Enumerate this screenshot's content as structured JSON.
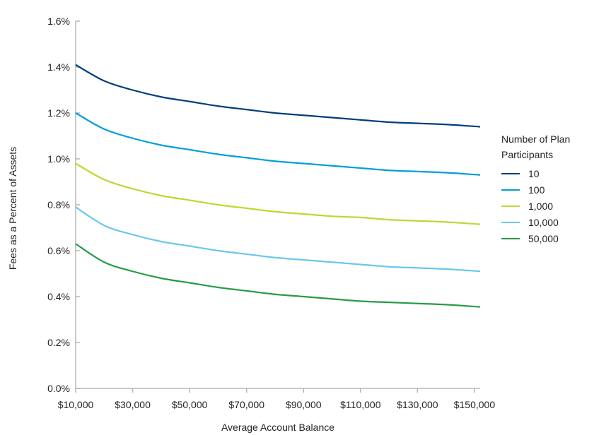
{
  "chart_data": {
    "type": "line",
    "xlabel": "Average Account Balance",
    "ylabel": "Fees as a Percent of Assets",
    "x_tick_labels": [
      "$10,000",
      "$30,000",
      "$50,000",
      "$70,000",
      "$90,000",
      "$110,000",
      "$130,000",
      "$150,000"
    ],
    "y_tick_labels": [
      "0.0%",
      "0.2%",
      "0.4%",
      "0.6%",
      "0.8%",
      "1.0%",
      "1.2%",
      "1.4%",
      "1.6%"
    ],
    "xlim": [
      10000,
      152000
    ],
    "ylim": [
      0,
      1.6
    ],
    "x_ticks": [
      10000,
      30000,
      50000,
      70000,
      90000,
      110000,
      130000,
      150000
    ],
    "y_ticks": [
      0,
      0.2,
      0.4,
      0.6,
      0.8,
      1.0,
      1.2,
      1.4,
      1.6
    ],
    "legend_title": "Number of Plan Participants",
    "legend_position": "right",
    "grid": false,
    "series": [
      {
        "name": "10",
        "color": "#003e7e",
        "x": [
          10000,
          20000,
          30000,
          40000,
          50000,
          60000,
          70000,
          80000,
          90000,
          100000,
          110000,
          120000,
          130000,
          140000,
          152000
        ],
        "y": [
          1.41,
          1.34,
          1.3,
          1.27,
          1.25,
          1.23,
          1.215,
          1.2,
          1.19,
          1.18,
          1.17,
          1.16,
          1.155,
          1.15,
          1.14
        ]
      },
      {
        "name": "100",
        "color": "#009fda",
        "x": [
          10000,
          20000,
          30000,
          40000,
          50000,
          60000,
          70000,
          80000,
          90000,
          100000,
          110000,
          120000,
          130000,
          140000,
          152000
        ],
        "y": [
          1.2,
          1.13,
          1.09,
          1.06,
          1.04,
          1.02,
          1.005,
          0.99,
          0.98,
          0.97,
          0.96,
          0.95,
          0.945,
          0.94,
          0.93
        ]
      },
      {
        "name": "1,000",
        "color": "#bfd730",
        "x": [
          10000,
          20000,
          30000,
          40000,
          50000,
          60000,
          70000,
          80000,
          90000,
          100000,
          110000,
          120000,
          130000,
          140000,
          152000
        ],
        "y": [
          0.98,
          0.91,
          0.87,
          0.84,
          0.82,
          0.8,
          0.785,
          0.77,
          0.76,
          0.75,
          0.745,
          0.735,
          0.73,
          0.725,
          0.715
        ]
      },
      {
        "name": "10,000",
        "color": "#69c8ec",
        "x": [
          10000,
          20000,
          30000,
          40000,
          50000,
          60000,
          70000,
          80000,
          90000,
          100000,
          110000,
          120000,
          130000,
          140000,
          152000
        ],
        "y": [
          0.79,
          0.71,
          0.67,
          0.64,
          0.62,
          0.6,
          0.585,
          0.57,
          0.56,
          0.55,
          0.54,
          0.53,
          0.525,
          0.52,
          0.51
        ]
      },
      {
        "name": "50,000",
        "color": "#279b48",
        "x": [
          10000,
          20000,
          30000,
          40000,
          50000,
          60000,
          70000,
          80000,
          90000,
          100000,
          110000,
          120000,
          130000,
          140000,
          152000
        ],
        "y": [
          0.63,
          0.55,
          0.51,
          0.48,
          0.46,
          0.44,
          0.425,
          0.41,
          0.4,
          0.39,
          0.38,
          0.375,
          0.37,
          0.365,
          0.355
        ]
      }
    ]
  }
}
